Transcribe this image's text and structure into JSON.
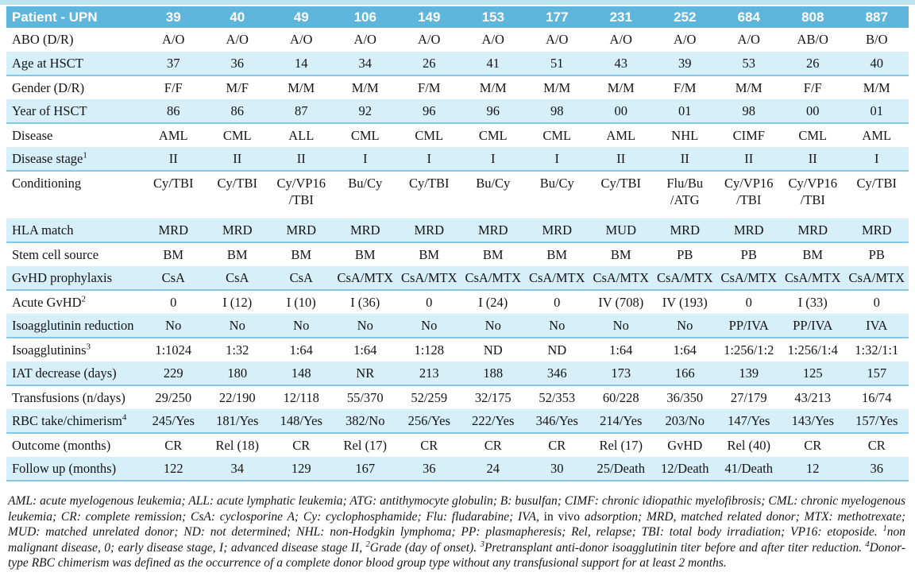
{
  "colors": {
    "header_bg": "#5FB6DC",
    "header_text": "#FFFFFF",
    "shaded_row": "#D7EFF8",
    "row_rule": "#85C8E5",
    "top_rule": "#BCE3F2",
    "text_color": "#141414"
  },
  "table": {
    "corner_label": "Patient - UPN",
    "patient_ids": [
      "39",
      "40",
      "49",
      "106",
      "149",
      "153",
      "177",
      "231",
      "252",
      "684",
      "808",
      "887"
    ],
    "rows": [
      {
        "label": "ABO (D/R)",
        "values": [
          "A/O",
          "A/O",
          "A/O",
          "A/O",
          "A/O",
          "A/O",
          "A/O",
          "A/O",
          "A/O",
          "A/O",
          "AB/O",
          "B/O"
        ]
      },
      {
        "label": "Age at HSCT",
        "values": [
          "37",
          "36",
          "14",
          "34",
          "26",
          "41",
          "51",
          "43",
          "39",
          "53",
          "26",
          "40"
        ]
      },
      {
        "label": "Gender (D/R)",
        "values": [
          "F/F",
          "M/F",
          "M/M",
          "M/M",
          "F/M",
          "M/M",
          "M/M",
          "M/M",
          "F/M",
          "M/M",
          "F/F",
          "M/M"
        ]
      },
      {
        "label": "Year of HSCT",
        "values": [
          "86",
          "86",
          "87",
          "92",
          "96",
          "96",
          "98",
          "00",
          "01",
          "98",
          "00",
          "01"
        ]
      },
      {
        "label": "Disease",
        "values": [
          "AML",
          "CML",
          "ALL",
          "CML",
          "CML",
          "CML",
          "CML",
          "AML",
          "NHL",
          "CIMF",
          "CML",
          "AML"
        ]
      },
      {
        "label": "Disease stage",
        "sup": "1",
        "values": [
          "II",
          "II",
          "II",
          "I",
          "I",
          "I",
          "I",
          "II",
          "II",
          "II",
          "II",
          "I"
        ]
      },
      {
        "label": "Conditioning",
        "values": [
          "Cy/TBI",
          "Cy/TBI",
          "Cy/VP16\n/TBI",
          "Bu/Cy",
          "Cy/TBI",
          "Bu/Cy",
          "Bu/Cy",
          "Cy/TBI",
          "Flu/Bu\n/ATG",
          "Cy/VP16\n/TBI",
          "Cy/VP16\n/TBI",
          "Cy/TBI"
        ]
      },
      {
        "label": "HLA match",
        "values": [
          "MRD",
          "MRD",
          "MRD",
          "MRD",
          "MRD",
          "MRD",
          "MRD",
          "MUD",
          "MRD",
          "MRD",
          "MRD",
          "MRD"
        ]
      },
      {
        "label": "Stem cell source",
        "values": [
          "BM",
          "BM",
          "BM",
          "BM",
          "BM",
          "BM",
          "BM",
          "BM",
          "PB",
          "PB",
          "BM",
          "PB"
        ]
      },
      {
        "label": "GvHD prophylaxis",
        "values": [
          "CsA",
          "CsA",
          "CsA",
          "CsA/MTX",
          "CsA/MTX",
          "CsA/MTX",
          "CsA/MTX",
          "CsA/MTX",
          "CsA/MTX",
          "CsA/MTX",
          "CsA/MTX",
          "CsA/MTX"
        ]
      },
      {
        "label": "Acute GvHD",
        "sup": "2",
        "values": [
          "0",
          "I (12)",
          "I (10)",
          "I (36)",
          "0",
          "I (24)",
          "0",
          "IV (708)",
          "IV (193)",
          "0",
          "I (33)",
          "0"
        ]
      },
      {
        "label": "Isoagglutinin reduction",
        "values": [
          "No",
          "No",
          "No",
          "No",
          "No",
          "No",
          "No",
          "No",
          "No",
          "PP/IVA",
          "PP/IVA",
          "IVA"
        ]
      },
      {
        "label": "Isoagglutinins",
        "sup": "3",
        "values": [
          "1:1024",
          "1:32",
          "1:64",
          "1:64",
          "1:128",
          "ND",
          "ND",
          "1:64",
          "1:64",
          "1:256/1:2",
          "1:256/1:4",
          "1:32/1:1"
        ]
      },
      {
        "label": "IAT decrease (days)",
        "values": [
          "229",
          "180",
          "148",
          "NR",
          "213",
          "188",
          "346",
          "173",
          "166",
          "139",
          "125",
          "157"
        ]
      },
      {
        "label": "Transfusions (n/days)",
        "values": [
          "29/250",
          "22/190",
          "12/118",
          "55/370",
          "52/259",
          "32/175",
          "52/353",
          "60/228",
          "36/350",
          "27/179",
          "43/213",
          "16/74"
        ]
      },
      {
        "label": "RBC take/chimerism",
        "sup": "4",
        "values": [
          "245/Yes",
          "181/Yes",
          "148/Yes",
          "382/No",
          "256/Yes",
          "222/Yes",
          "346/Yes",
          "214/Yes",
          "203/No",
          "147/Yes",
          "143/Yes",
          "157/Yes"
        ]
      },
      {
        "label": "Outcome (months)",
        "values": [
          "CR",
          "Rel (18)",
          "CR",
          "Rel (17)",
          "CR",
          "CR",
          "CR",
          "Rel (17)",
          "GvHD",
          "Rel (40)",
          "CR",
          "CR"
        ]
      },
      {
        "label": "Follow up (months)",
        "values": [
          "122",
          "34",
          "129",
          "167",
          "36",
          "24",
          "30",
          "25/Death",
          "12/Death",
          "41/Death",
          "12",
          "36"
        ]
      }
    ]
  },
  "footnote": {
    "segments": [
      {
        "text": "AML: acute myelogenous leukemia; ALL: acute lymphatic leukemia; ATG: antithymocyte globulin; B: busulfan; CIMF: chronic idiopathic myelofibrosis; CML: chronic myelogenous leukemia; CR: complete remission; CsA: cyclosporine A; Cy: cyclophosphamide; Flu: fludarabine; IVA, "
      },
      {
        "text": "in vivo",
        "roman": true
      },
      {
        "text": " adsorption; MRD, matched related donor; MTX: methotrexate; MUD: matched unrelated donor; ND: not determined; NHL: non-Hodgkin lymphoma; PP: plasmapheresis; Rel, relapse; TBI: total body irradiation; VP16: etoposide. "
      },
      {
        "sup": "1"
      },
      {
        "text": "non malignant disease, 0; early disease stage, I; advanced disease stage II, "
      },
      {
        "sup": "2"
      },
      {
        "text": "Grade (day of onset). "
      },
      {
        "sup": "3"
      },
      {
        "text": "Pretransplant anti-donor isoagglutinin titer before and after titer reduction. "
      },
      {
        "sup": "4"
      },
      {
        "text": "Donor-type RBC chimerism was defined as the occurrence of a complete donor blood group type without any transfusional support for at least 2 months."
      }
    ]
  }
}
